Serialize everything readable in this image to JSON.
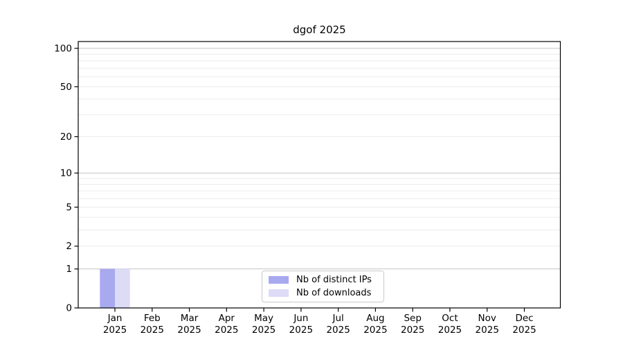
{
  "chart_data": {
    "type": "bar",
    "title": "dgof 2025",
    "categories": [
      "Jan",
      "Feb",
      "Mar",
      "Apr",
      "May",
      "Jun",
      "Jul",
      "Aug",
      "Sep",
      "Oct",
      "Nov",
      "Dec"
    ],
    "category_year": "2025",
    "series": [
      {
        "name": "Nb of distinct IPs",
        "color": "#a9a9f0",
        "values": [
          1,
          0,
          0,
          0,
          0,
          0,
          0,
          0,
          0,
          0,
          0,
          0
        ]
      },
      {
        "name": "Nb of downloads",
        "color": "#dcdcf7",
        "values": [
          1,
          0,
          0,
          0,
          0,
          0,
          0,
          0,
          0,
          0,
          0,
          0
        ]
      }
    ],
    "xlabel": "",
    "ylabel": "",
    "y_scale": "log1p",
    "ylim": [
      0,
      113
    ],
    "y_major_ticks": [
      0,
      1,
      2,
      5,
      10,
      20,
      50,
      100
    ],
    "y_decade_ticks": [
      1,
      10,
      100
    ],
    "y_minor_ticks": [
      3,
      4,
      6,
      7,
      8,
      9,
      30,
      40,
      60,
      70,
      80,
      90
    ],
    "grid": "horizontal",
    "legend_position": "lower center",
    "colors": {
      "grid_decade": "#c2c2c2",
      "grid_minor": "#ececec",
      "spine": "#000000",
      "tick_text": "#000000",
      "background": "#ffffff"
    }
  }
}
